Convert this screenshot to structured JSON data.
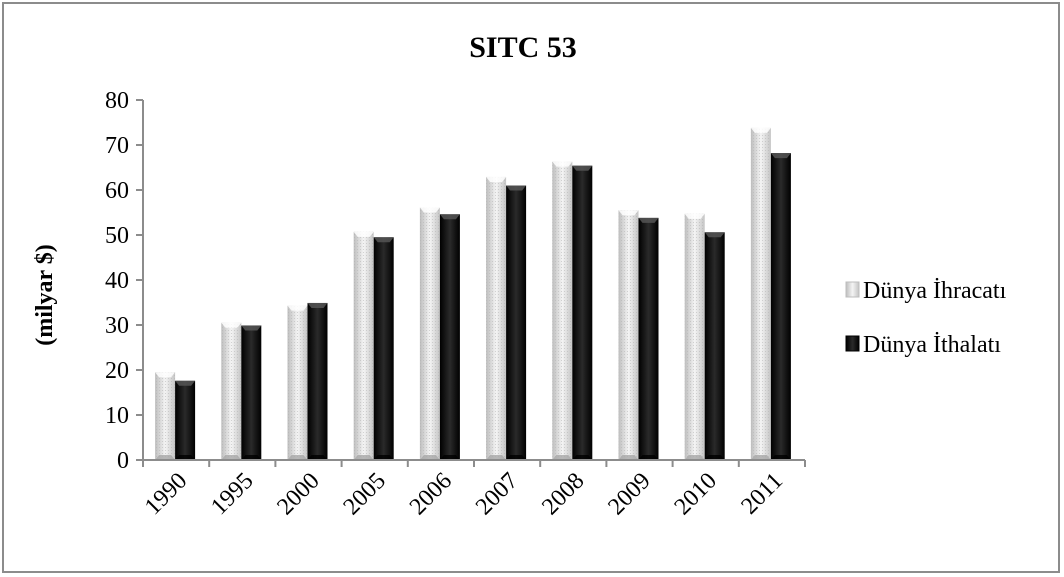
{
  "chart_data": {
    "type": "bar",
    "title": "SITC 53",
    "xlabel": "",
    "ylabel": "(milyar $)",
    "categories": [
      "1990",
      "1995",
      "2000",
      "2005",
      "2006",
      "2007",
      "2008",
      "2009",
      "2010",
      "2011"
    ],
    "series": [
      {
        "name": "Dünya İhracatı",
        "values": [
          19.5,
          30.5,
          34.3,
          50.7,
          56.1,
          62.9,
          66.3,
          55.5,
          54.7,
          73.8
        ],
        "color": "#e6e6e6"
      },
      {
        "name": "Dünya İthalatı",
        "values": [
          17.6,
          29.9,
          34.9,
          49.5,
          54.6,
          61.0,
          65.4,
          53.8,
          50.6,
          68.2
        ],
        "color": "#111111"
      }
    ],
    "ylim": [
      0,
      80
    ],
    "yticks": [
      "0",
      "10",
      "20",
      "30",
      "40",
      "50",
      "60",
      "70",
      "80"
    ],
    "grid": false,
    "legend": "right"
  }
}
